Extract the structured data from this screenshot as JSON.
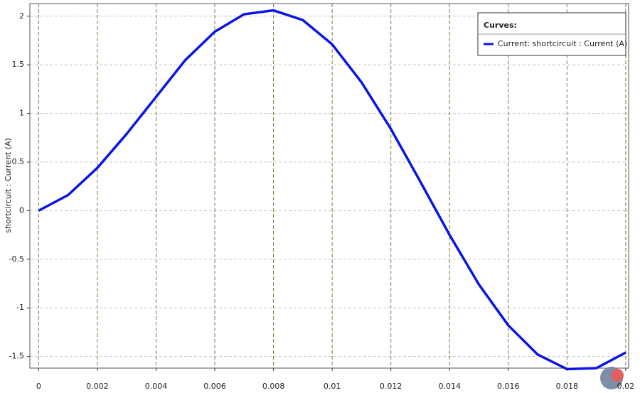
{
  "chart_data": {
    "type": "line",
    "y_label": "shortcircuit : Current (A)",
    "legend_title": "Curves:",
    "legend_position": "upper right",
    "grid": true,
    "x": [
      0,
      0.001,
      0.002,
      0.003,
      0.004,
      0.005,
      0.006,
      0.007,
      0.008,
      0.009,
      0.01,
      0.011,
      0.012,
      0.013,
      0.014,
      0.015,
      0.016,
      0.017,
      0.018,
      0.019,
      0.02
    ],
    "series": [
      {
        "name": "Current:  shortcircuit : Current (A)",
        "color": "#0a14e6",
        "values": [
          0,
          0.16,
          0.44,
          0.79,
          1.17,
          1.55,
          1.84,
          2.02,
          2.06,
          1.96,
          1.71,
          1.32,
          0.84,
          0.3,
          -0.25,
          -0.76,
          -1.18,
          -1.48,
          -1.63,
          -1.62,
          -1.46
        ]
      }
    ],
    "xlim": [
      -0.0003,
      0.0201
    ],
    "xticks": [
      0,
      0.002,
      0.004,
      0.006,
      0.008,
      0.01,
      0.012,
      0.014,
      0.016,
      0.018,
      0.02
    ],
    "ylim": [
      -1.62,
      2.13
    ],
    "yticks": [
      -1.5,
      -1,
      -0.5,
      0,
      0.5,
      1,
      1.5,
      2
    ]
  }
}
